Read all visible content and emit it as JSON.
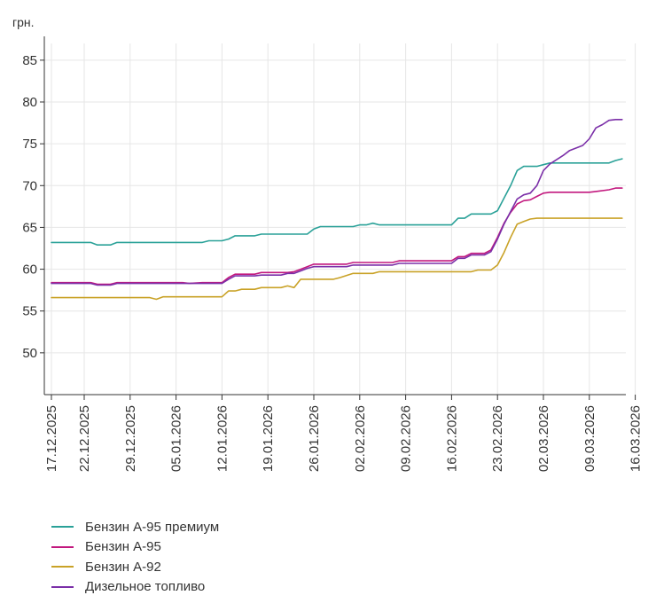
{
  "chart_data": {
    "type": "line",
    "title": "",
    "unit_label": "грн.",
    "xlabel": "",
    "ylabel": "грн.",
    "ylim": [
      45,
      87
    ],
    "y_ticks": [
      50,
      55,
      60,
      65,
      70,
      75,
      80,
      85
    ],
    "grid": true,
    "legend_position": "bottom-left",
    "x_tick_labels": [
      "17.12.2025",
      "22.12.2025",
      "29.12.2025",
      "05.01.2026",
      "12.01.2026",
      "19.01.2026",
      "26.01.2026",
      "02.02.2026",
      "09.02.2026",
      "16.02.2026",
      "23.02.2026",
      "02.03.2026",
      "09.03.2026",
      "16.03.2026"
    ],
    "x_tick_days": [
      0,
      5,
      12,
      19,
      26,
      33,
      40,
      47,
      54,
      61,
      68,
      75,
      82,
      89
    ],
    "x_range_days": [
      -0.5,
      91.5
    ],
    "series": [
      {
        "name": "Бензин А-95 премиум",
        "color": "#2aa198",
        "points": [
          [
            0,
            63.2
          ],
          [
            6,
            63.2
          ],
          [
            7,
            62.9
          ],
          [
            9,
            62.9
          ],
          [
            10,
            63.2
          ],
          [
            23,
            63.2
          ],
          [
            24,
            63.4
          ],
          [
            26,
            63.4
          ],
          [
            27,
            63.6
          ],
          [
            28,
            64.0
          ],
          [
            31,
            64.0
          ],
          [
            32,
            64.2
          ],
          [
            39,
            64.2
          ],
          [
            40,
            64.8
          ],
          [
            41,
            65.1
          ],
          [
            46,
            65.1
          ],
          [
            47,
            65.3
          ],
          [
            48,
            65.3
          ],
          [
            49,
            65.5
          ],
          [
            50,
            65.3
          ],
          [
            60,
            65.3
          ],
          [
            61,
            65.3
          ],
          [
            62,
            66.1
          ],
          [
            63,
            66.1
          ],
          [
            64,
            66.6
          ],
          [
            67,
            66.6
          ],
          [
            68,
            67.0
          ],
          [
            69,
            68.5
          ],
          [
            70,
            70.0
          ],
          [
            71,
            71.8
          ],
          [
            72,
            72.3
          ],
          [
            74,
            72.3
          ],
          [
            75,
            72.5
          ],
          [
            76,
            72.7
          ],
          [
            85,
            72.7
          ],
          [
            86,
            73.0
          ],
          [
            87,
            73.2
          ]
        ]
      },
      {
        "name": "Бензин А-95",
        "color": "#c2187e",
        "points": [
          [
            0,
            58.4
          ],
          [
            6,
            58.4
          ],
          [
            7,
            58.2
          ],
          [
            9,
            58.2
          ],
          [
            10,
            58.4
          ],
          [
            20,
            58.4
          ],
          [
            21,
            58.3
          ],
          [
            23,
            58.4
          ],
          [
            26,
            58.4
          ],
          [
            27,
            59.0
          ],
          [
            28,
            59.4
          ],
          [
            31,
            59.4
          ],
          [
            32,
            59.6
          ],
          [
            36,
            59.6
          ],
          [
            37,
            59.7
          ],
          [
            38,
            60.0
          ],
          [
            39,
            60.3
          ],
          [
            40,
            60.6
          ],
          [
            45,
            60.6
          ],
          [
            46,
            60.8
          ],
          [
            52,
            60.8
          ],
          [
            53,
            61.0
          ],
          [
            61,
            61.0
          ],
          [
            62,
            61.5
          ],
          [
            63,
            61.5
          ],
          [
            64,
            61.9
          ],
          [
            66,
            61.9
          ],
          [
            67,
            62.3
          ],
          [
            68,
            63.8
          ],
          [
            69,
            65.5
          ],
          [
            70,
            66.8
          ],
          [
            71,
            67.8
          ],
          [
            72,
            68.2
          ],
          [
            73,
            68.3
          ],
          [
            74,
            68.7
          ],
          [
            75,
            69.1
          ],
          [
            76,
            69.2
          ],
          [
            82,
            69.2
          ],
          [
            83,
            69.3
          ],
          [
            85,
            69.5
          ],
          [
            86,
            69.7
          ],
          [
            87,
            69.7
          ]
        ]
      },
      {
        "name": "Бензин А-92",
        "color": "#c9a227",
        "points": [
          [
            0,
            56.6
          ],
          [
            15,
            56.6
          ],
          [
            16,
            56.4
          ],
          [
            17,
            56.7
          ],
          [
            26,
            56.7
          ],
          [
            27,
            57.4
          ],
          [
            28,
            57.4
          ],
          [
            29,
            57.6
          ],
          [
            31,
            57.6
          ],
          [
            32,
            57.8
          ],
          [
            35,
            57.8
          ],
          [
            36,
            58.0
          ],
          [
            37,
            57.8
          ],
          [
            38,
            58.8
          ],
          [
            43,
            58.8
          ],
          [
            44,
            59.0
          ],
          [
            46,
            59.5
          ],
          [
            49,
            59.5
          ],
          [
            50,
            59.7
          ],
          [
            64,
            59.7
          ],
          [
            65,
            59.9
          ],
          [
            67,
            59.9
          ],
          [
            68,
            60.5
          ],
          [
            69,
            62.0
          ],
          [
            70,
            63.8
          ],
          [
            71,
            65.4
          ],
          [
            72,
            65.7
          ],
          [
            73,
            66.0
          ],
          [
            74,
            66.1
          ],
          [
            87,
            66.1
          ]
        ]
      },
      {
        "name": "Дизельное топливо",
        "color": "#7b2fa8",
        "points": [
          [
            0,
            58.3
          ],
          [
            6,
            58.3
          ],
          [
            7,
            58.1
          ],
          [
            9,
            58.1
          ],
          [
            10,
            58.3
          ],
          [
            26,
            58.3
          ],
          [
            27,
            58.8
          ],
          [
            28,
            59.2
          ],
          [
            31,
            59.2
          ],
          [
            32,
            59.3
          ],
          [
            35,
            59.3
          ],
          [
            36,
            59.5
          ],
          [
            37,
            59.5
          ],
          [
            38,
            59.8
          ],
          [
            39,
            60.1
          ],
          [
            40,
            60.3
          ],
          [
            45,
            60.3
          ],
          [
            46,
            60.5
          ],
          [
            52,
            60.5
          ],
          [
            53,
            60.7
          ],
          [
            61,
            60.7
          ],
          [
            62,
            61.3
          ],
          [
            63,
            61.3
          ],
          [
            64,
            61.7
          ],
          [
            66,
            61.7
          ],
          [
            67,
            62.1
          ],
          [
            68,
            63.6
          ],
          [
            69,
            65.4
          ],
          [
            70,
            66.9
          ],
          [
            71,
            68.4
          ],
          [
            72,
            68.9
          ],
          [
            73,
            69.1
          ],
          [
            74,
            70.0
          ],
          [
            75,
            71.8
          ],
          [
            76,
            72.6
          ],
          [
            77,
            73.1
          ],
          [
            78,
            73.6
          ],
          [
            79,
            74.2
          ],
          [
            80,
            74.5
          ],
          [
            81,
            74.8
          ],
          [
            82,
            75.6
          ],
          [
            83,
            76.9
          ],
          [
            84,
            77.3
          ],
          [
            85,
            77.8
          ],
          [
            86,
            77.9
          ],
          [
            87,
            77.9
          ]
        ]
      }
    ]
  }
}
